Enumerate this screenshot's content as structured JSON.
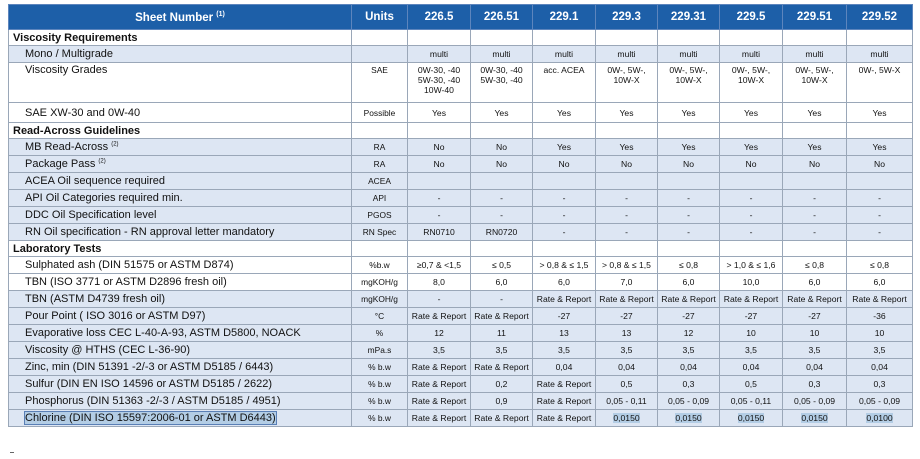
{
  "header": {
    "sheet_number": "Sheet Number",
    "sheet_number_note": "(1)",
    "units": "Units",
    "specs": [
      "226.5",
      "226.51",
      "229.1",
      "229.3",
      "229.31",
      "229.5",
      "229.51",
      "229.52"
    ]
  },
  "sections": [
    {
      "title": "Viscosity Requirements",
      "rows": [
        {
          "name": "Mono / Multigrade",
          "unit": "",
          "values": [
            "multi",
            "multi",
            "multi",
            "multi",
            "multi",
            "multi",
            "multi",
            "multi"
          ]
        },
        {
          "name": "Viscosity Grades",
          "unit": "SAE",
          "values": [
            "0W-30, -40 5W-30, -40 10W-40",
            "0W-30, -40 5W-30, -40",
            "acc. ACEA",
            "0W-, 5W-, 10W-X",
            "0W-, 5W-, 10W-X",
            "0W-, 5W-, 10W-X",
            "0W-, 5W-, 10W-X",
            "0W-, 5W-X"
          ]
        },
        {
          "name": "SAE XW-30 and 0W-40",
          "unit": "Possible",
          "values": [
            "Yes",
            "Yes",
            "Yes",
            "Yes",
            "Yes",
            "Yes",
            "Yes",
            "Yes"
          ]
        }
      ]
    },
    {
      "title": "Read-Across Guidelines",
      "rows": [
        {
          "name": "MB Read-Across",
          "note": "(2)",
          "unit": "RA",
          "values": [
            "No",
            "No",
            "Yes",
            "Yes",
            "Yes",
            "Yes",
            "Yes",
            "Yes"
          ]
        },
        {
          "name": "Package Pass",
          "note": "(2)",
          "unit": "RA",
          "values": [
            "No",
            "No",
            "No",
            "No",
            "No",
            "No",
            "No",
            "No"
          ]
        },
        {
          "name": "ACEA Oil sequence required",
          "unit": "ACEA",
          "values": [
            "",
            "",
            "",
            "",
            "",
            "",
            "",
            ""
          ]
        },
        {
          "name": "API Oil Categories required min.",
          "unit": "API",
          "values": [
            "-",
            "-",
            "-",
            "-",
            "-",
            "-",
            "-",
            "-"
          ]
        },
        {
          "name": "DDC Oil Specification level",
          "unit": "PGOS",
          "values": [
            "-",
            "-",
            "-",
            "-",
            "-",
            "-",
            "-",
            "-"
          ]
        },
        {
          "name": "RN Oil specification - RN approval letter mandatory",
          "unit": "RN Spec",
          "values": [
            "RN0710",
            "RN0720",
            "-",
            "-",
            "-",
            "-",
            "-",
            "-"
          ]
        }
      ]
    },
    {
      "title": "Laboratory Tests",
      "rows": [
        {
          "name": "Sulphated ash (DIN 51575 or ASTM D874)",
          "unit": "%b.w",
          "values": [
            "≥0,7 & <1,5",
            "≤ 0,5",
            "> 0,8 & ≤ 1,5",
            "> 0,8 & ≤ 1,5",
            "≤ 0,8",
            "> 1,0 & ≤ 1,6",
            "≤ 0,8",
            "≤ 0,8"
          ]
        },
        {
          "name": "TBN (ISO 3771 or ASTM D2896 fresh oil)",
          "unit": "mgKOH/g",
          "values": [
            "8,0",
            "6,0",
            "6,0",
            "7,0",
            "6,0",
            "10,0",
            "6,0",
            "6,0"
          ]
        },
        {
          "name": "TBN (ASTM D4739 fresh oil)",
          "unit": "mgKOH/g",
          "values": [
            "-",
            "-",
            "Rate & Report",
            "Rate & Report",
            "Rate & Report",
            "Rate & Report",
            "Rate & Report",
            "Rate & Report"
          ]
        },
        {
          "name": "Pour Point ( ISO 3016 or ASTM D97)",
          "unit": "°C",
          "values": [
            "Rate & Report",
            "Rate & Report",
            "-27",
            "-27",
            "-27",
            "-27",
            "-27",
            "-36"
          ]
        },
        {
          "name": "Evaporative loss CEC L-40-A-93, ASTM D5800, NOACK",
          "unit": "%",
          "values": [
            "12",
            "11",
            "13",
            "13",
            "12",
            "10",
            "10",
            "10"
          ]
        },
        {
          "name": "Viscosity @ HTHS (CEC L-36-90)",
          "unit": "mPa.s",
          "values": [
            "3,5",
            "3,5",
            "3,5",
            "3,5",
            "3,5",
            "3,5",
            "3,5",
            "3,5"
          ]
        },
        {
          "name": "Zinc, min (DIN 51391 -2/-3 or ASTM D5185 / 6443)",
          "unit": "% b.w",
          "values": [
            "Rate & Report",
            "Rate & Report",
            "0,04",
            "0,04",
            "0,04",
            "0,04",
            "0,04",
            "0,04"
          ]
        },
        {
          "name": "Sulfur (DIN EN ISO 14596 or ASTM D5185 / 2622)",
          "unit": "% b.w",
          "values": [
            "Rate & Report",
            "0,2",
            "Rate & Report",
            "0,5",
            "0,3",
            "0,5",
            "0,3",
            "0,3"
          ]
        },
        {
          "name": "Phosphorus (DIN 51363 -2/-3 / ASTM D5185 / 4951)",
          "unit": "% b.w",
          "values": [
            "Rate & Report",
            "0,9",
            "Rate & Report",
            "0,05 - 0,11",
            "0,05 - 0,09",
            "0,05 - 0,11",
            "0,05 - 0,09",
            "0,05 - 0,09"
          ]
        },
        {
          "name": "Chlorine (DIN ISO 15597:2006-01 or ASTM D6443)",
          "unit": "% b.w",
          "values": [
            "Rate & Report",
            "Rate & Report",
            "Rate & Report",
            "0,0150",
            "0,0150",
            "0,0150",
            "0,0150",
            "0,0100"
          ]
        }
      ]
    }
  ]
}
